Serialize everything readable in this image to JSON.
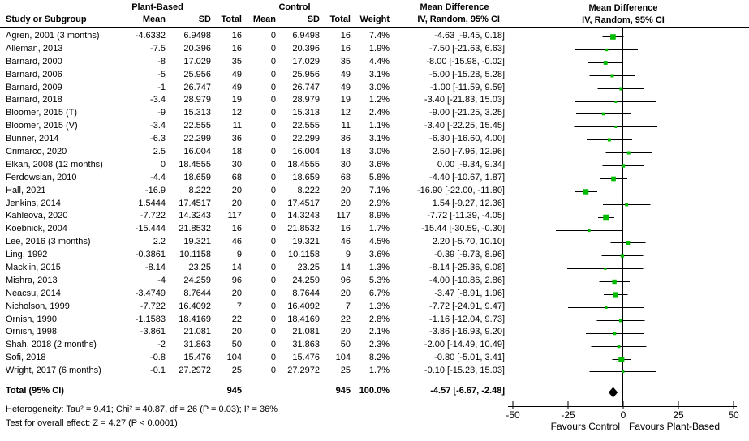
{
  "header": {
    "study_col": "Study or Subgroup",
    "group_plant": "Plant-Based",
    "group_control": "Control",
    "col_mean": "Mean",
    "col_sd": "SD",
    "col_total": "Total",
    "col_weight": "Weight",
    "md_title": "Mean Difference",
    "md_sub": "IV, Random, 95% CI"
  },
  "chart_data": {
    "type": "forest",
    "effect_measure": "Mean Difference IV, Random, 95% CI",
    "marker_color": "#00bb00",
    "line_color": "#000000",
    "diamond_color": "#000000",
    "axis": {
      "min": -50,
      "max": 50,
      "ticks": [
        -50,
        -25,
        0,
        25,
        50
      ],
      "left_label": "Favours Control",
      "right_label": "Favours Plant-Based"
    },
    "studies": [
      {
        "name": "Agren, 2001 (3 months)",
        "pb_mean": "-4.6332",
        "pb_sd": "6.9498",
        "pb_total": "16",
        "c_mean": "0",
        "c_sd": "6.9498",
        "c_total": "16",
        "weight": "7.4%",
        "ci_text": "-4.63 [-9.45, 0.18]",
        "md": -4.63,
        "ci_low": -9.45,
        "ci_high": 0.18
      },
      {
        "name": "Alleman, 2013",
        "pb_mean": "-7.5",
        "pb_sd": "20.396",
        "pb_total": "16",
        "c_mean": "0",
        "c_sd": "20.396",
        "c_total": "16",
        "weight": "1.9%",
        "ci_text": "-7.50 [-21.63, 6.63]",
        "md": -7.5,
        "ci_low": -21.63,
        "ci_high": 6.63
      },
      {
        "name": "Barnard, 2000",
        "pb_mean": "-8",
        "pb_sd": "17.029",
        "pb_total": "35",
        "c_mean": "0",
        "c_sd": "17.029",
        "c_total": "35",
        "weight": "4.4%",
        "ci_text": "-8.00 [-15.98, -0.02]",
        "md": -8,
        "ci_low": -15.98,
        "ci_high": -0.02
      },
      {
        "name": "Barnard, 2006",
        "pb_mean": "-5",
        "pb_sd": "25.956",
        "pb_total": "49",
        "c_mean": "0",
        "c_sd": "25.956",
        "c_total": "49",
        "weight": "3.1%",
        "ci_text": "-5.00 [-15.28, 5.28]",
        "md": -5,
        "ci_low": -15.28,
        "ci_high": 5.28
      },
      {
        "name": "Barnard, 2009",
        "pb_mean": "-1",
        "pb_sd": "26.747",
        "pb_total": "49",
        "c_mean": "0",
        "c_sd": "26.747",
        "c_total": "49",
        "weight": "3.0%",
        "ci_text": "-1.00 [-11.59, 9.59]",
        "md": -1,
        "ci_low": -11.59,
        "ci_high": 9.59
      },
      {
        "name": "Barnard, 2018",
        "pb_mean": "-3.4",
        "pb_sd": "28.979",
        "pb_total": "19",
        "c_mean": "0",
        "c_sd": "28.979",
        "c_total": "19",
        "weight": "1.2%",
        "ci_text": "-3.40 [-21.83, 15.03]",
        "md": -3.4,
        "ci_low": -21.83,
        "ci_high": 15.03
      },
      {
        "name": "Bloomer, 2015 (T)",
        "pb_mean": "-9",
        "pb_sd": "15.313",
        "pb_total": "12",
        "c_mean": "0",
        "c_sd": "15.313",
        "c_total": "12",
        "weight": "2.4%",
        "ci_text": "-9.00 [-21.25, 3.25]",
        "md": -9,
        "ci_low": -21.25,
        "ci_high": 3.25
      },
      {
        "name": "Bloomer, 2015 (V)",
        "pb_mean": "-3.4",
        "pb_sd": "22.555",
        "pb_total": "11",
        "c_mean": "0",
        "c_sd": "22.555",
        "c_total": "11",
        "weight": "1.1%",
        "ci_text": "-3.40 [-22.25, 15.45]",
        "md": -3.4,
        "ci_low": -22.25,
        "ci_high": 15.45
      },
      {
        "name": "Bunner, 2014",
        "pb_mean": "-6.3",
        "pb_sd": "22.299",
        "pb_total": "36",
        "c_mean": "0",
        "c_sd": "22.299",
        "c_total": "36",
        "weight": "3.1%",
        "ci_text": "-6.30 [-16.60, 4.00]",
        "md": -6.3,
        "ci_low": -16.6,
        "ci_high": 4
      },
      {
        "name": "Crimarco, 2020",
        "pb_mean": "2.5",
        "pb_sd": "16.004",
        "pb_total": "18",
        "c_mean": "0",
        "c_sd": "16.004",
        "c_total": "18",
        "weight": "3.0%",
        "ci_text": "2.50 [-7.96, 12.96]",
        "md": 2.5,
        "ci_low": -7.96,
        "ci_high": 12.96
      },
      {
        "name": "Elkan, 2008 (12 months)",
        "pb_mean": "0",
        "pb_sd": "18.4555",
        "pb_total": "30",
        "c_mean": "0",
        "c_sd": "18.4555",
        "c_total": "30",
        "weight": "3.6%",
        "ci_text": "0.00 [-9.34, 9.34]",
        "md": 0,
        "ci_low": -9.34,
        "ci_high": 9.34
      },
      {
        "name": "Ferdowsian, 2010",
        "pb_mean": "-4.4",
        "pb_sd": "18.659",
        "pb_total": "68",
        "c_mean": "0",
        "c_sd": "18.659",
        "c_total": "68",
        "weight": "5.8%",
        "ci_text": "-4.40 [-10.67, 1.87]",
        "md": -4.4,
        "ci_low": -10.67,
        "ci_high": 1.87
      },
      {
        "name": "Hall, 2021",
        "pb_mean": "-16.9",
        "pb_sd": "8.222",
        "pb_total": "20",
        "c_mean": "0",
        "c_sd": "8.222",
        "c_total": "20",
        "weight": "7.1%",
        "ci_text": "-16.90 [-22.00, -11.80]",
        "md": -16.9,
        "ci_low": -22,
        "ci_high": -11.8
      },
      {
        "name": "Jenkins, 2014",
        "pb_mean": "1.5444",
        "pb_sd": "17.4517",
        "pb_total": "20",
        "c_mean": "0",
        "c_sd": "17.4517",
        "c_total": "20",
        "weight": "2.9%",
        "ci_text": "1.54 [-9.27, 12.36]",
        "md": 1.54,
        "ci_low": -9.27,
        "ci_high": 12.36
      },
      {
        "name": "Kahleova, 2020",
        "pb_mean": "-7.722",
        "pb_sd": "14.3243",
        "pb_total": "117",
        "c_mean": "0",
        "c_sd": "14.3243",
        "c_total": "117",
        "weight": "8.9%",
        "ci_text": "-7.72 [-11.39, -4.05]",
        "md": -7.72,
        "ci_low": -11.39,
        "ci_high": -4.05
      },
      {
        "name": "Koebnick, 2004",
        "pb_mean": "-15.444",
        "pb_sd": "21.8532",
        "pb_total": "16",
        "c_mean": "0",
        "c_sd": "21.8532",
        "c_total": "16",
        "weight": "1.7%",
        "ci_text": "-15.44 [-30.59, -0.30]",
        "md": -15.44,
        "ci_low": -30.59,
        "ci_high": -0.3
      },
      {
        "name": "Lee, 2016 (3 months)",
        "pb_mean": "2.2",
        "pb_sd": "19.321",
        "pb_total": "46",
        "c_mean": "0",
        "c_sd": "19.321",
        "c_total": "46",
        "weight": "4.5%",
        "ci_text": "2.20 [-5.70, 10.10]",
        "md": 2.2,
        "ci_low": -5.7,
        "ci_high": 10.1
      },
      {
        "name": "Ling, 1992",
        "pb_mean": "-0.3861",
        "pb_sd": "10.1158",
        "pb_total": "9",
        "c_mean": "0",
        "c_sd": "10.1158",
        "c_total": "9",
        "weight": "3.6%",
        "ci_text": "-0.39 [-9.73, 8.96]",
        "md": -0.39,
        "ci_low": -9.73,
        "ci_high": 8.96
      },
      {
        "name": "Macklin, 2015",
        "pb_mean": "-8.14",
        "pb_sd": "23.25",
        "pb_total": "14",
        "c_mean": "0",
        "c_sd": "23.25",
        "c_total": "14",
        "weight": "1.3%",
        "ci_text": "-8.14 [-25.36, 9.08]",
        "md": -8.14,
        "ci_low": -25.36,
        "ci_high": 9.08
      },
      {
        "name": "Mishra, 2013",
        "pb_mean": "-4",
        "pb_sd": "24.259",
        "pb_total": "96",
        "c_mean": "0",
        "c_sd": "24.259",
        "c_total": "96",
        "weight": "5.3%",
        "ci_text": "-4.00 [-10.86, 2.86]",
        "md": -4,
        "ci_low": -10.86,
        "ci_high": 2.86
      },
      {
        "name": "Neacsu, 2014",
        "pb_mean": "-3.4749",
        "pb_sd": "8.7644",
        "pb_total": "20",
        "c_mean": "0",
        "c_sd": "8.7644",
        "c_total": "20",
        "weight": "6.7%",
        "ci_text": "-3.47 [-8.91, 1.96]",
        "md": -3.47,
        "ci_low": -8.91,
        "ci_high": 1.96
      },
      {
        "name": "Nicholson, 1999",
        "pb_mean": "-7.722",
        "pb_sd": "16.4092",
        "pb_total": "7",
        "c_mean": "0",
        "c_sd": "16.4092",
        "c_total": "7",
        "weight": "1.3%",
        "ci_text": "-7.72 [-24.91, 9.47]",
        "md": -7.72,
        "ci_low": -24.91,
        "ci_high": 9.47
      },
      {
        "name": "Ornish, 1990",
        "pb_mean": "-1.1583",
        "pb_sd": "18.4169",
        "pb_total": "22",
        "c_mean": "0",
        "c_sd": "18.4169",
        "c_total": "22",
        "weight": "2.8%",
        "ci_text": "-1.16 [-12.04, 9.73]",
        "md": -1.16,
        "ci_low": -12.04,
        "ci_high": 9.73
      },
      {
        "name": "Ornish, 1998",
        "pb_mean": "-3.861",
        "pb_sd": "21.081",
        "pb_total": "20",
        "c_mean": "0",
        "c_sd": "21.081",
        "c_total": "20",
        "weight": "2.1%",
        "ci_text": "-3.86 [-16.93, 9.20]",
        "md": -3.86,
        "ci_low": -16.93,
        "ci_high": 9.2
      },
      {
        "name": "Shah, 2018 (2 months)",
        "pb_mean": "-2",
        "pb_sd": "31.863",
        "pb_total": "50",
        "c_mean": "0",
        "c_sd": "31.863",
        "c_total": "50",
        "weight": "2.3%",
        "ci_text": "-2.00 [-14.49, 10.49]",
        "md": -2,
        "ci_low": -14.49,
        "ci_high": 10.49
      },
      {
        "name": "Sofi, 2018",
        "pb_mean": "-0.8",
        "pb_sd": "15.476",
        "pb_total": "104",
        "c_mean": "0",
        "c_sd": "15.476",
        "c_total": "104",
        "weight": "8.2%",
        "ci_text": "-0.80 [-5.01, 3.41]",
        "md": -0.8,
        "ci_low": -5.01,
        "ci_high": 3.41
      },
      {
        "name": "Wright, 2017 (6 months)",
        "pb_mean": "-0.1",
        "pb_sd": "27.2972",
        "pb_total": "25",
        "c_mean": "0",
        "c_sd": "27.2972",
        "c_total": "25",
        "weight": "1.7%",
        "ci_text": "-0.10 [-15.23, 15.03]",
        "md": -0.1,
        "ci_low": -15.23,
        "ci_high": 15.03
      }
    ],
    "total": {
      "label": "Total (95% CI)",
      "pb_total": "945",
      "c_total": "945",
      "weight": "100.0%",
      "ci_text": "-4.57 [-6.67, -2.48]",
      "md": -4.57,
      "ci_low": -6.67,
      "ci_high": -2.48
    }
  },
  "footer": {
    "heterogeneity": "Heterogeneity: Tau² = 9.41; Chi² = 40.87, df = 26 (P = 0.03); I² = 36%",
    "overall_effect": "Test for overall effect: Z = 4.27 (P < 0.0001)"
  }
}
